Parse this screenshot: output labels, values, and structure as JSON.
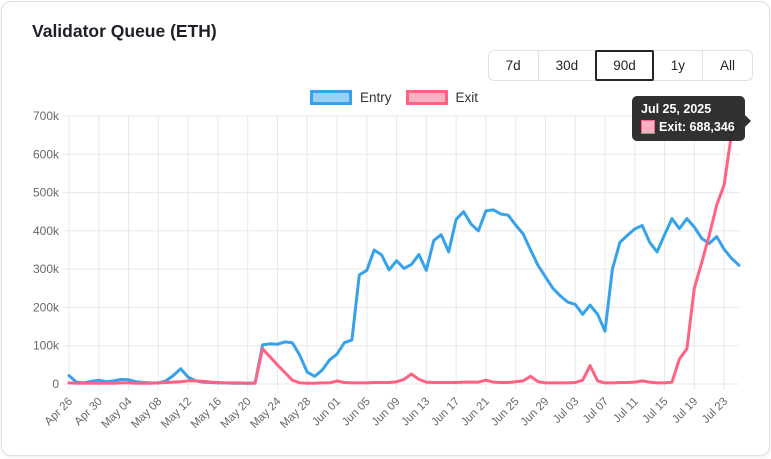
{
  "card": {
    "title": "Validator Queue (ETH)"
  },
  "range_buttons": [
    {
      "label": "7d",
      "active": false
    },
    {
      "label": "30d",
      "active": false
    },
    {
      "label": "90d",
      "active": true
    },
    {
      "label": "1y",
      "active": false
    },
    {
      "label": "All",
      "active": false
    }
  ],
  "legend": [
    {
      "label": "Entry"
    },
    {
      "label": "Exit"
    }
  ],
  "tooltip": {
    "title": "Jul 25, 2025",
    "text": "Exit: 688,346"
  },
  "chart_data": {
    "type": "line",
    "title": "Validator Queue (ETH)",
    "x_unit": "day",
    "x_range": [
      "Apr 26",
      "Jul 25"
    ],
    "x_tick_labels": [
      "Apr 26",
      "Apr 30",
      "May 04",
      "May 08",
      "May 12",
      "May 16",
      "May 20",
      "May 24",
      "May 28",
      "Jun 01",
      "Jun 05",
      "Jun 09",
      "Jun 13",
      "Jun 17",
      "Jun 21",
      "Jun 25",
      "Jun 29",
      "Jul 03",
      "Jul 07",
      "Jul 11",
      "Jul 15",
      "Jul 19",
      "Jul 23"
    ],
    "x_tick_step_days": 4,
    "ylim": [
      0,
      700000
    ],
    "y_tick_labels": [
      "0",
      "100k",
      "200k",
      "300k",
      "400k",
      "500k",
      "600k",
      "700k"
    ],
    "grid": true,
    "legend_position": "top",
    "values_unit": "thousands of ETH",
    "series": [
      {
        "name": "Entry",
        "color": "#36a2eb",
        "fill": "#9ad0f5",
        "values_thousands": [
          22,
          5,
          3,
          7,
          10,
          6,
          8,
          12,
          11,
          6,
          4,
          3,
          3,
          8,
          22,
          40,
          18,
          8,
          5,
          4,
          3,
          3,
          2,
          2,
          2,
          3,
          102,
          105,
          104,
          110,
          108,
          75,
          31,
          20,
          36,
          63,
          78,
          108,
          115,
          285,
          297,
          350,
          337,
          298,
          322,
          302,
          312,
          338,
          297,
          375,
          390,
          345,
          430,
          450,
          418,
          400,
          452,
          455,
          444,
          441,
          415,
          392,
          350,
          310,
          280,
          250,
          230,
          214,
          208,
          182,
          206,
          182,
          138,
          300,
          370,
          388,
          405,
          414,
          370,
          345,
          390,
          432,
          406,
          432,
          410,
          380,
          367,
          385,
          352,
          328,
          310
        ]
      },
      {
        "name": "Exit",
        "color": "#ff6384",
        "fill": "#f9b0c3",
        "values_thousands": [
          3,
          2,
          2,
          2,
          2,
          2,
          2,
          3,
          3,
          2,
          2,
          2,
          3,
          4,
          5,
          6,
          8,
          8,
          7,
          5,
          4,
          3,
          3,
          3,
          2,
          2,
          92,
          71,
          50,
          30,
          10,
          3,
          2,
          2,
          3,
          3,
          8,
          4,
          3,
          3,
          3,
          4,
          4,
          4,
          6,
          12,
          26,
          12,
          5,
          4,
          4,
          4,
          4,
          5,
          5,
          5,
          10,
          5,
          4,
          4,
          6,
          8,
          20,
          6,
          3,
          3,
          3,
          3,
          4,
          10,
          48,
          8,
          3,
          3,
          4,
          4,
          5,
          8,
          5,
          3,
          3,
          5,
          65,
          92,
          250,
          318,
          388,
          467,
          520,
          655,
          688.346
        ]
      }
    ]
  }
}
